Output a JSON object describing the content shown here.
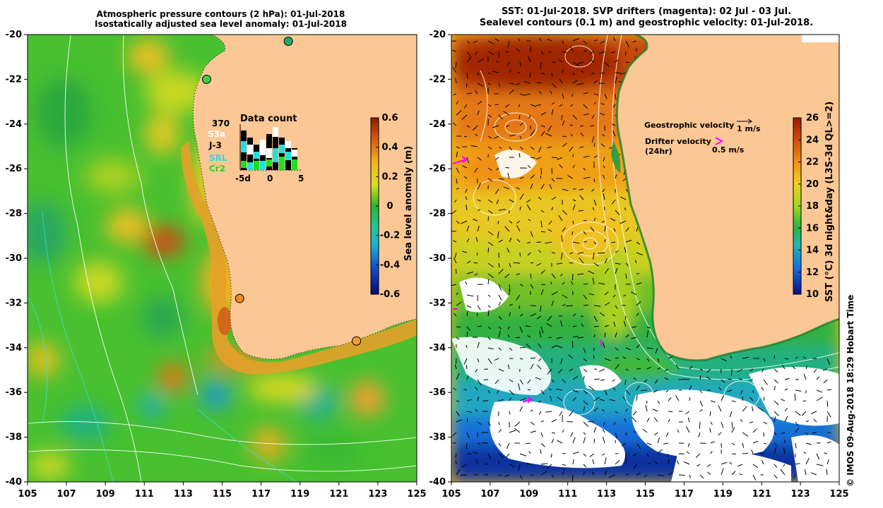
{
  "left_panel": {
    "title_line1": "Atmospheric pressure contours (2 hPa): 01-Jul-2018",
    "title_line2": "Isostatically adjusted sea level anomaly: 01-Jul-2018",
    "lat_ticks": [
      "-20",
      "-22",
      "-24",
      "-26",
      "-28",
      "-30",
      "-32",
      "-34",
      "-36",
      "-38",
      "-40"
    ],
    "lon_ticks": [
      "105",
      "107",
      "109",
      "111",
      "113",
      "115",
      "117",
      "119",
      "121",
      "123",
      "125"
    ],
    "colorbar": {
      "label": "Sea level anomaly (m)",
      "ticks": [
        "0.6",
        "0.4",
        "0.2",
        "0",
        "-0.2",
        "-0.4",
        "-0.6"
      ]
    },
    "data_count": {
      "title": "Data count",
      "legend": [
        {
          "label": "370",
          "color": "#000000"
        },
        {
          "label": "S3a",
          "color": "#ffffff"
        },
        {
          "label": "J-3",
          "color": "#000000"
        },
        {
          "label": "SRL",
          "color": "#22e0e0"
        },
        {
          "label": "Cr2",
          "color": "#22dd22"
        }
      ],
      "x_ticks": [
        "-5d",
        "0",
        "5"
      ]
    },
    "tide_gauges": [
      {
        "lon": 118.4,
        "lat": -20.3,
        "color": "#22aa66"
      },
      {
        "lon": 114.2,
        "lat": -22.0,
        "color": "#44cc44"
      },
      {
        "lon": 115.9,
        "lat": -31.8,
        "color": "#ee8822"
      },
      {
        "lon": 121.9,
        "lat": -33.7,
        "color": "#f0a030"
      }
    ]
  },
  "right_panel": {
    "title_line1": "SST: 01-Jul-2018. SVP drifters (magenta): 02 Jul - 03 Jul.",
    "title_line2": "Sealevel contours (0.1 m) and geostrophic velocity: 01-Jul-2018.",
    "lat_ticks": [
      "-20",
      "-22",
      "-24",
      "-26",
      "-28",
      "-30",
      "-32",
      "-34",
      "-36",
      "-38",
      "-40"
    ],
    "lon_ticks": [
      "105",
      "107",
      "109",
      "111",
      "113",
      "115",
      "117",
      "119",
      "121",
      "123",
      "125"
    ],
    "colorbar": {
      "label": "SST (°C) 3d night&day (L3S-3d QL>=2)",
      "ticks": [
        "26",
        "24",
        "22",
        "20",
        "18",
        "16",
        "14",
        "12",
        "10"
      ]
    },
    "legend": {
      "geostrophic_label": "Geostrophic velocity",
      "geostrophic_scale": "1 m/s",
      "drifter_label": "Drifter velocity",
      "drifter_period": "(24hr)",
      "drifter_scale": "0.5 m/s"
    },
    "credit": "© IMOS 09-Aug-2018 18:29 Hobart Time"
  },
  "colors": {
    "land": "#fbc795",
    "magenta": "#ff00ff"
  }
}
